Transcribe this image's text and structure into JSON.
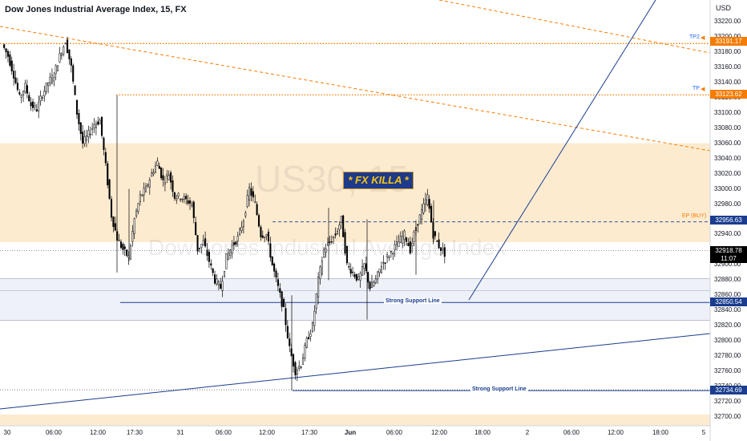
{
  "header": {
    "title": "Dow Jones Industrial Average Index, 15, FX",
    "currency": "USD"
  },
  "watermark": {
    "symbol": "US30, 15",
    "description": "Dow Jones Industrial Average Index"
  },
  "brand_badge": "* FX KILLA *",
  "annotations": {
    "tp2": "TP2",
    "tp": "TP",
    "ep_buy": "EP (BUY)",
    "support_1": "Strong Support Line",
    "support_2": "Strong Support Line"
  },
  "price_tags": {
    "tp2": "33191.17",
    "tp": "33123.62",
    "ep": "32956.63",
    "current": "32918.78",
    "countdown": "11:07",
    "support_1": "32850.54",
    "support_2": "32734.69"
  },
  "colors": {
    "orange_level": "#f57c00",
    "blue_level": "#1a3d8f",
    "current_price": "#000000",
    "zone_fill": "#fdebd0",
    "support_zone_fill": "#eef1f8",
    "candle": "#000000"
  },
  "y_axis": {
    "labels": [
      "33220.00",
      "33200.00",
      "33180.00",
      "33160.00",
      "33140.00",
      "33120.00",
      "33100.00",
      "33080.00",
      "33060.00",
      "33040.00",
      "33020.00",
      "33000.00",
      "32980.00",
      "32960.00",
      "32940.00",
      "32920.00",
      "32900.00",
      "32880.00",
      "32860.00",
      "32840.00",
      "32820.00",
      "32800.00",
      "32780.00",
      "32760.00",
      "32740.00",
      "32720.00",
      "32700.00"
    ]
  },
  "x_axis": {
    "labels": [
      "30",
      "06:00",
      "12:00",
      "17:30",
      "31",
      "06:00",
      "12:00",
      "17:30",
      "Jun",
      "06:00",
      "12:00",
      "18:00",
      "2",
      "06:00",
      "12:00",
      "18:00",
      "5"
    ]
  },
  "chart_data": {
    "type": "candlestick",
    "symbol": "US30",
    "timeframe": "15",
    "ylim": [
      32690,
      33235
    ],
    "levels": {
      "tp2": 33191.17,
      "tp": 33123.62,
      "entry_buy": 32956.63,
      "current": 32918.78,
      "support_1": 32850.54,
      "support_2": 32734.69
    },
    "zones": [
      {
        "from": 32930,
        "to": 33060,
        "label": ""
      },
      {
        "from": 32827,
        "to": 32882,
        "label": ""
      }
    ],
    "close_path": [
      33190,
      33175,
      33150,
      33120,
      33135,
      33110,
      33105,
      33125,
      33140,
      33150,
      33175,
      33195,
      33160,
      33100,
      33060,
      33072,
      33085,
      33090,
      33030,
      32965,
      32935,
      32920,
      32910,
      32960,
      32990,
      33000,
      33020,
      33035,
      33010,
      33020,
      32990,
      32990,
      32985,
      32980,
      32920,
      32930,
      32905,
      32880,
      32870,
      32910,
      32925,
      32935,
      32960,
      33000,
      32980,
      32940,
      32940,
      32900,
      32870,
      32840,
      32790,
      32760,
      32770,
      32800,
      32820,
      32880,
      32920,
      32930,
      32940,
      32960,
      32900,
      32890,
      32880,
      32900,
      32870,
      32880,
      32900,
      32910,
      32920,
      32930,
      32940,
      32920,
      32950,
      32970,
      32990,
      32940,
      32925,
      32915
    ]
  }
}
